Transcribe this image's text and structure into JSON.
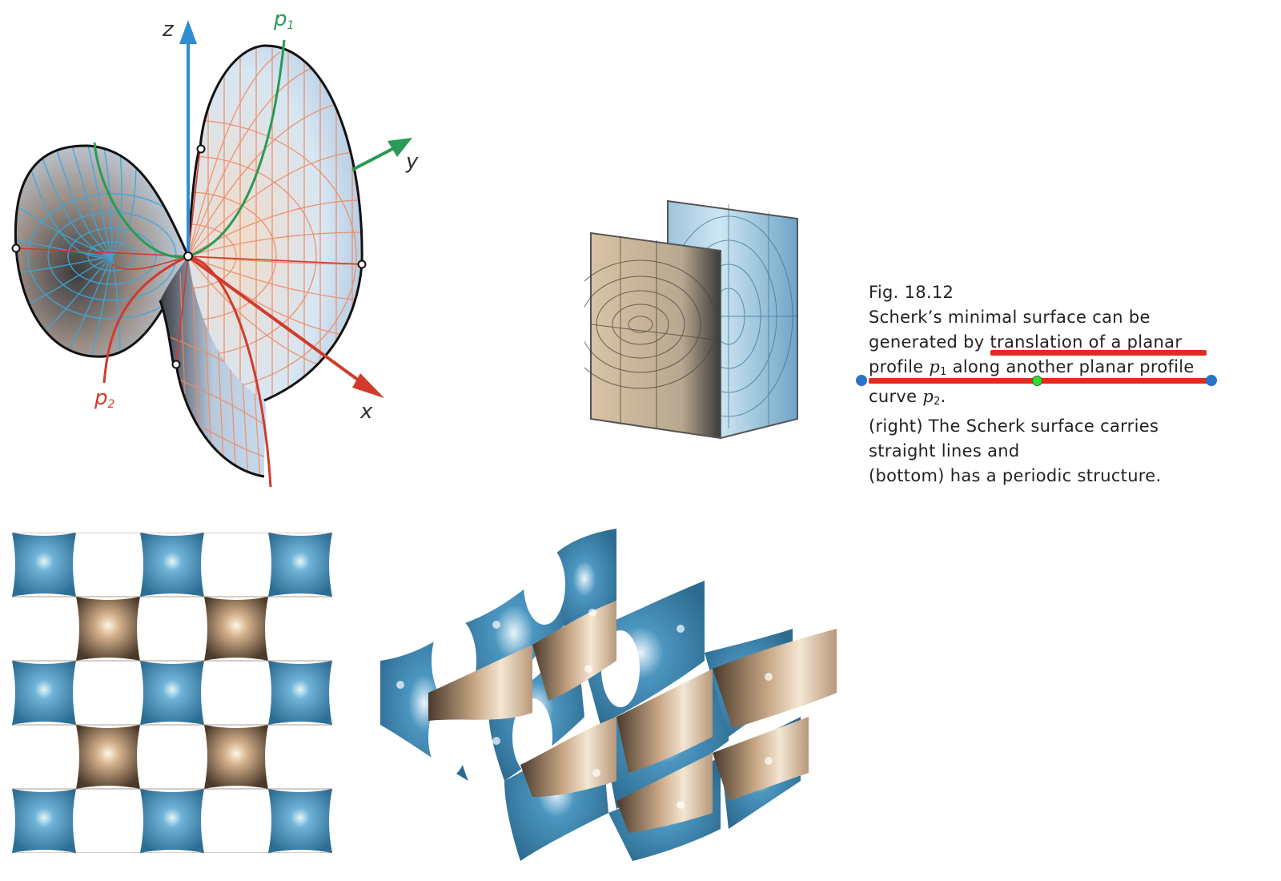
{
  "figure": {
    "axes": {
      "x": "x",
      "y": "y",
      "z": "z",
      "p1": "p",
      "p1_sub": "1",
      "p2": "p",
      "p2_sub": "2"
    }
  },
  "caption": {
    "line1": "Fig. 18.12",
    "line2": "Scherk’s minimal surface can be",
    "line3": "generated by translation of a planar",
    "line4_a": "profile ",
    "line4_p": "p",
    "line4_sub": "1",
    "line4_b": " along another planar profile",
    "line5_a": "curve ",
    "line5_p": "p",
    "line5_sub": "2",
    "line5_b": ".",
    "line6": "(right) The Scherk surface carries",
    "line7": "straight lines and",
    "line8": "(bottom) has a periodic structure."
  },
  "colors": {
    "surface_blue": "#4a8fb8",
    "surface_tan": "#c9a886",
    "axis_blue": "#2f8ed1",
    "axis_green": "#2a9a55",
    "axis_red": "#d13a2c",
    "highlight": "#e02b20",
    "handle_blue": "#2a72c8",
    "handle_green": "#33dd33"
  }
}
